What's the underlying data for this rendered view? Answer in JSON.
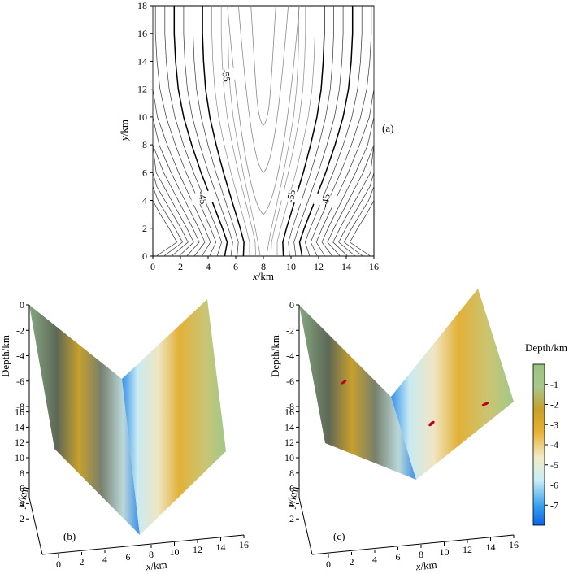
{
  "chart_data": [
    {
      "panel": "(a)",
      "type": "contour",
      "xlabel_var": "x",
      "xlabel_unit": "/km",
      "ylabel_var": "y",
      "ylabel_unit": "/km",
      "xlim": [
        0,
        16
      ],
      "ylim": [
        0,
        18
      ],
      "xticks": [
        0,
        2,
        4,
        6,
        8,
        10,
        12,
        14,
        16
      ],
      "yticks": [
        0,
        2,
        4,
        6,
        8,
        10,
        12,
        14,
        16,
        18
      ],
      "contour_labels": [
        "-55",
        "-45",
        "-55",
        "-45"
      ],
      "label_color_major": "#000000",
      "label_color_minor": "#8a8a8a"
    },
    {
      "panel": "(b)",
      "type": "surface3d",
      "xlabel_var": "x",
      "xlabel_unit": "/km",
      "ylabel_var": "y",
      "ylabel_unit": "/km",
      "zlabel": "Depth/km",
      "xticks": [
        0,
        2,
        4,
        6,
        8,
        10,
        12,
        14,
        16
      ],
      "yticks": [
        2,
        4,
        6,
        8,
        10,
        12,
        14,
        16
      ],
      "zticks": [
        0,
        -2,
        -4,
        -6,
        -8
      ],
      "surface_shape": "V-shaped valley, deepest along x = 8"
    },
    {
      "panel": "(c)",
      "type": "surface3d",
      "xlabel_var": "x",
      "xlabel_unit": "/km",
      "ylabel_var": "y",
      "ylabel_unit": "/km",
      "zlabel": "Depth/km",
      "xticks": [
        0,
        2,
        4,
        6,
        8,
        10,
        12,
        14,
        16
      ],
      "yticks": [
        2,
        4,
        6,
        8,
        10,
        12,
        14,
        16
      ],
      "zticks": [
        0,
        -2,
        -4,
        -6,
        -8
      ],
      "marker_color": "#c0001a"
    }
  ],
  "colorbar": {
    "title": "Depth/km",
    "ticks": [
      "-1",
      "-2",
      "-3",
      "-4",
      "-5",
      "-6",
      "-7"
    ],
    "range": [
      -8,
      0
    ],
    "colors": [
      "#0a63ea",
      "#35a0ee",
      "#c8eef5",
      "#f2ecc8",
      "#e8b030",
      "#c7a028",
      "#a7c88b",
      "#98c47e"
    ]
  }
}
